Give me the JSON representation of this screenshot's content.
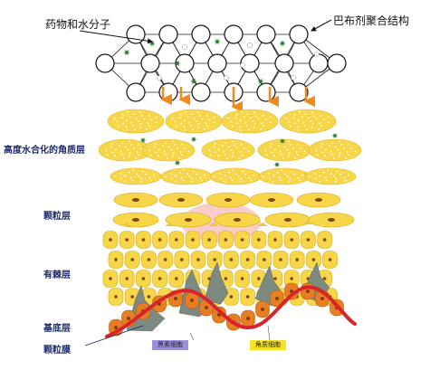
{
  "labels": {
    "drug_water": "药物和水分子",
    "polymer": "巴布剂聚合结构",
    "stratum_corneum": "高度水合化的角质层",
    "granular": "颗粒层",
    "spinous": "有棘层",
    "basal": "基底层",
    "basement_membrane": "颗粒膜",
    "melanocyte": "黑素细胞",
    "keratinocyte": "角质细胞"
  },
  "colors": {
    "label_blue": "#1c2a6e",
    "cell_yellow": "#f7d64a",
    "cell_light": "#fbe98a",
    "nucleus": "#7a4a10",
    "basal_orange": "#e87e24",
    "membrane_red": "#d8242a",
    "melanocyte_gray": "#7d8a80",
    "arrow_orange": "#f08a1c",
    "drug_green": "#2e7d32",
    "tag_purple": "#9c8fd8",
    "tag_yellow": "#f5e425"
  },
  "icons": [
    "arrow-down-icon",
    "drug-molecule-icon",
    "water-molecule-icon"
  ]
}
